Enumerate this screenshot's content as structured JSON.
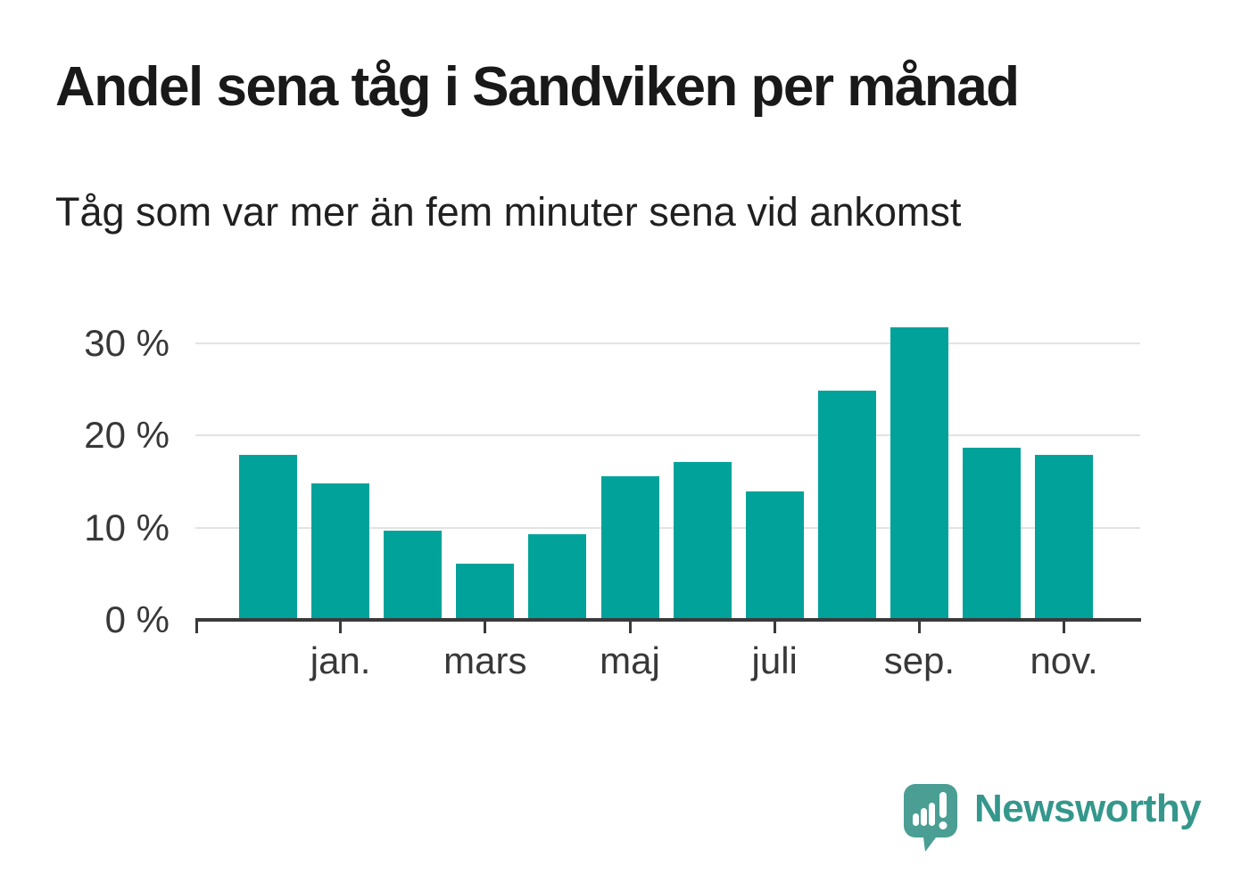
{
  "header": {
    "title": "Andel sena tåg i Sandviken per månad",
    "subtitle": "Tåg som var mer än fem minuter sena vid ankomst"
  },
  "chart_data": {
    "type": "bar",
    "title": "Andel sena tåg i Sandviken per månad",
    "subtitle": "Tåg som var mer än fem minuter sena vid ankomst",
    "unit": "%",
    "categories": [
      "",
      "jan.",
      "",
      "mars",
      "",
      "maj",
      "",
      "juli",
      "",
      "sep.",
      "",
      "nov."
    ],
    "values": [
      17.9,
      14.8,
      9.7,
      6.1,
      9.3,
      15.6,
      17.1,
      13.9,
      24.8,
      31.7,
      18.6,
      17.9
    ],
    "y_ticks": [
      {
        "value": 0,
        "label": "0 %"
      },
      {
        "value": 10,
        "label": "10 %"
      },
      {
        "value": 20,
        "label": "20 %"
      },
      {
        "value": 30,
        "label": "30 %"
      }
    ],
    "ylim": [
      0,
      34
    ],
    "grid": true,
    "legend_position": "none",
    "bar_color": "#00a29a",
    "gridline_color": "#e3e3e3",
    "axis_color": "#3a3a3a",
    "label_color": "#383838"
  },
  "footer": {
    "brand": "Newsworthy",
    "brand_color": "#35978c",
    "logo_color": "#4a9e94",
    "logo_icon": "speech-bubble-bar-chart-icon"
  }
}
